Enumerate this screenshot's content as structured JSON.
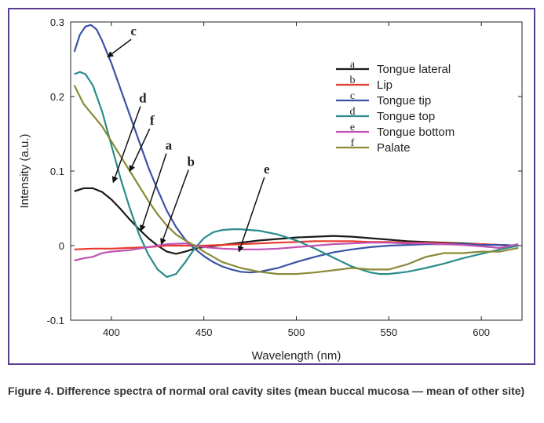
{
  "caption": "Figure 4. Difference spectra of normal oral cavity sites (mean buccal mucosa — mean of other site)",
  "chart_data": {
    "type": "line",
    "title": "",
    "xlabel": "Wavelength (nm)",
    "ylabel": "Intensity (a.u.)",
    "xlim": [
      378,
      622
    ],
    "ylim": [
      -0.1,
      0.3
    ],
    "x_ticks": [
      400,
      450,
      500,
      550,
      600
    ],
    "x_tick_labels": [
      "400",
      "450",
      "500",
      "550",
      "600"
    ],
    "y_ticks": [
      -0.1,
      0,
      0.1,
      0.2,
      0.3
    ],
    "y_tick_labels": [
      "-0.1",
      "0",
      "0.1",
      "0.2",
      "0.3"
    ],
    "grid": false,
    "legend_position": "top-right",
    "series": [
      {
        "name": "Tongue lateral",
        "letter": "a",
        "color": "#1a1a1a",
        "x": [
          380,
          385,
          390,
          395,
          400,
          405,
          410,
          415,
          420,
          425,
          430,
          435,
          440,
          445,
          450,
          460,
          470,
          480,
          490,
          500,
          510,
          520,
          530,
          540,
          550,
          560,
          570,
          580,
          590,
          600,
          610,
          620
        ],
        "y": [
          0.073,
          0.077,
          0.077,
          0.072,
          0.062,
          0.049,
          0.035,
          0.022,
          0.01,
          0.0,
          -0.008,
          -0.011,
          -0.008,
          -0.004,
          -0.002,
          0.001,
          0.004,
          0.007,
          0.009,
          0.011,
          0.012,
          0.013,
          0.012,
          0.01,
          0.008,
          0.006,
          0.005,
          0.004,
          0.003,
          0.002,
          0.001,
          0.0
        ]
      },
      {
        "name": "Lip",
        "letter": "b",
        "color": "#e8392a",
        "x": [
          380,
          390,
          400,
          410,
          420,
          430,
          440,
          450,
          460,
          470,
          480,
          490,
          500,
          510,
          520,
          530,
          540,
          550,
          560,
          570,
          580,
          590,
          600,
          610,
          620
        ],
        "y": [
          -0.005,
          -0.004,
          -0.004,
          -0.003,
          -0.002,
          0.0,
          0.0,
          0.0,
          0.001,
          0.002,
          0.003,
          0.004,
          0.005,
          0.006,
          0.006,
          0.006,
          0.005,
          0.005,
          0.004,
          0.004,
          0.003,
          0.002,
          0.002,
          0.001,
          0.0
        ]
      },
      {
        "name": "Tongue tip",
        "letter": "c",
        "color": "#3b53a4",
        "x": [
          380,
          383,
          386,
          389,
          392,
          395,
          400,
          405,
          410,
          415,
          420,
          425,
          430,
          435,
          440,
          445,
          450,
          455,
          460,
          465,
          470,
          475,
          480,
          490,
          500,
          510,
          520,
          530,
          540,
          550,
          560,
          570,
          580,
          590,
          600,
          610,
          620
        ],
        "y": [
          0.26,
          0.283,
          0.294,
          0.296,
          0.29,
          0.275,
          0.245,
          0.21,
          0.175,
          0.14,
          0.105,
          0.075,
          0.047,
          0.025,
          0.008,
          -0.004,
          -0.014,
          -0.022,
          -0.028,
          -0.032,
          -0.035,
          -0.036,
          -0.035,
          -0.03,
          -0.022,
          -0.015,
          -0.009,
          -0.005,
          -0.002,
          0.0,
          0.001,
          0.002,
          0.002,
          0.002,
          0.001,
          0.001,
          0.0
        ]
      },
      {
        "name": "Tongue top",
        "letter": "d",
        "color": "#2a8c8c",
        "x": [
          380,
          383,
          386,
          390,
          395,
          400,
          405,
          410,
          415,
          420,
          425,
          430,
          435,
          440,
          445,
          450,
          455,
          460,
          465,
          470,
          475,
          480,
          490,
          500,
          510,
          520,
          530,
          540,
          545,
          550,
          560,
          570,
          580,
          590,
          600,
          610,
          620
        ],
        "y": [
          0.23,
          0.233,
          0.23,
          0.215,
          0.18,
          0.135,
          0.09,
          0.05,
          0.015,
          -0.012,
          -0.032,
          -0.042,
          -0.038,
          -0.022,
          -0.004,
          0.01,
          0.018,
          0.021,
          0.022,
          0.022,
          0.021,
          0.02,
          0.015,
          0.007,
          -0.004,
          -0.016,
          -0.028,
          -0.036,
          -0.038,
          -0.038,
          -0.035,
          -0.03,
          -0.024,
          -0.017,
          -0.011,
          -0.005,
          0.0
        ]
      },
      {
        "name": "Tongue bottom",
        "letter": "e",
        "color": "#c052b3",
        "x": [
          380,
          385,
          390,
          395,
          400,
          405,
          410,
          415,
          420,
          425,
          430,
          440,
          450,
          460,
          470,
          480,
          490,
          500,
          510,
          520,
          530,
          540,
          550,
          560,
          570,
          580,
          590,
          600,
          610,
          620
        ],
        "y": [
          -0.02,
          -0.017,
          -0.015,
          -0.01,
          -0.008,
          -0.007,
          -0.006,
          -0.004,
          -0.002,
          0.0,
          0.002,
          0.003,
          -0.002,
          -0.004,
          -0.005,
          -0.005,
          -0.004,
          -0.002,
          0.0,
          0.002,
          0.003,
          0.004,
          0.004,
          0.003,
          0.003,
          0.002,
          0.001,
          -0.001,
          -0.003,
          0.002
        ]
      },
      {
        "name": "Palate",
        "letter": "f",
        "color": "#8a8a3a",
        "x": [
          380,
          385,
          390,
          395,
          400,
          405,
          410,
          415,
          420,
          425,
          430,
          435,
          440,
          445,
          450,
          460,
          470,
          480,
          490,
          500,
          510,
          520,
          530,
          540,
          550,
          560,
          570,
          580,
          590,
          600,
          610,
          620
        ],
        "y": [
          0.215,
          0.19,
          0.175,
          0.16,
          0.14,
          0.12,
          0.1,
          0.08,
          0.06,
          0.042,
          0.027,
          0.015,
          0.007,
          0.0,
          -0.008,
          -0.022,
          -0.03,
          -0.035,
          -0.038,
          -0.038,
          -0.036,
          -0.033,
          -0.03,
          -0.032,
          -0.032,
          -0.025,
          -0.015,
          -0.01,
          -0.01,
          -0.008,
          -0.008,
          -0.003
        ]
      }
    ],
    "annotations": [
      {
        "label": "c",
        "tx": 412,
        "ty": 0.282,
        "ax": 398,
        "ay": 0.253
      },
      {
        "label": "d",
        "tx": 417,
        "ty": 0.192,
        "ax": 401,
        "ay": 0.085
      },
      {
        "label": "f",
        "tx": 422,
        "ty": 0.162,
        "ax": 410,
        "ay": 0.1
      },
      {
        "label": "a",
        "tx": 431,
        "ty": 0.129,
        "ax": 416,
        "ay": 0.02
      },
      {
        "label": "b",
        "tx": 443,
        "ty": 0.107,
        "ax": 427,
        "ay": 0.002
      },
      {
        "label": "e",
        "tx": 484,
        "ty": 0.097,
        "ax": 469,
        "ay": -0.008
      }
    ]
  }
}
